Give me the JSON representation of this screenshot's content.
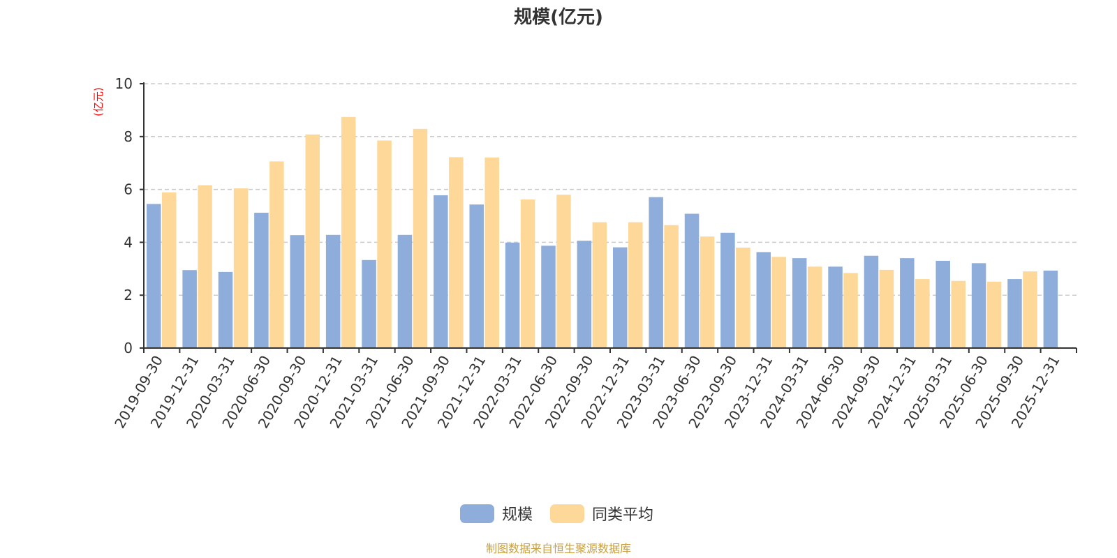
{
  "chart_data": {
    "type": "bar",
    "title": "规模(亿元)",
    "ylabel": "(亿元)",
    "ylim": [
      0,
      10
    ],
    "yticks": [
      "0",
      "2",
      "4",
      "6",
      "8",
      "10"
    ],
    "grid": true,
    "legend_position": "bottom",
    "categories": [
      "2019-09-30",
      "2019-12-31",
      "2020-03-31",
      "2020-06-30",
      "2020-09-30",
      "2020-12-31",
      "2021-03-31",
      "2021-06-30",
      "2021-09-30",
      "2021-12-31",
      "2022-03-31",
      "2022-06-30",
      "2022-09-30",
      "2022-12-31",
      "2023-03-31",
      "2023-06-30",
      "2023-09-30",
      "2023-12-31",
      "2024-03-31",
      "2024-06-30",
      "2024-09-30",
      "2024-12-31",
      "2025-03-31",
      "2025-06-30",
      "2025-09-30",
      "2025-12-31"
    ],
    "series": [
      {
        "name": "规模",
        "color": "#8eadda",
        "values": [
          5.45,
          2.95,
          2.88,
          5.12,
          4.27,
          4.28,
          3.33,
          4.28,
          5.78,
          5.43,
          3.99,
          3.87,
          4.06,
          3.81,
          5.71,
          5.08,
          4.36,
          3.63,
          3.4,
          3.08,
          3.49,
          3.4,
          3.3,
          3.21,
          2.61,
          2.93
        ]
      },
      {
        "name": "同类平均",
        "color": "#fed899",
        "values": [
          5.89,
          6.16,
          6.04,
          7.06,
          8.08,
          8.74,
          7.85,
          8.29,
          7.22,
          7.21,
          5.62,
          5.8,
          4.76,
          4.76,
          4.65,
          4.22,
          3.8,
          3.45,
          3.08,
          2.84,
          2.96,
          2.61,
          2.54,
          2.51,
          2.9,
          null
        ]
      }
    ]
  },
  "colors": {
    "axis": "#333333",
    "grid": "#cccccc",
    "unit_label": "#ff0000",
    "source_text": "#c8a040"
  },
  "footer": {
    "source": "制图数据来自恒生聚源数据库"
  }
}
